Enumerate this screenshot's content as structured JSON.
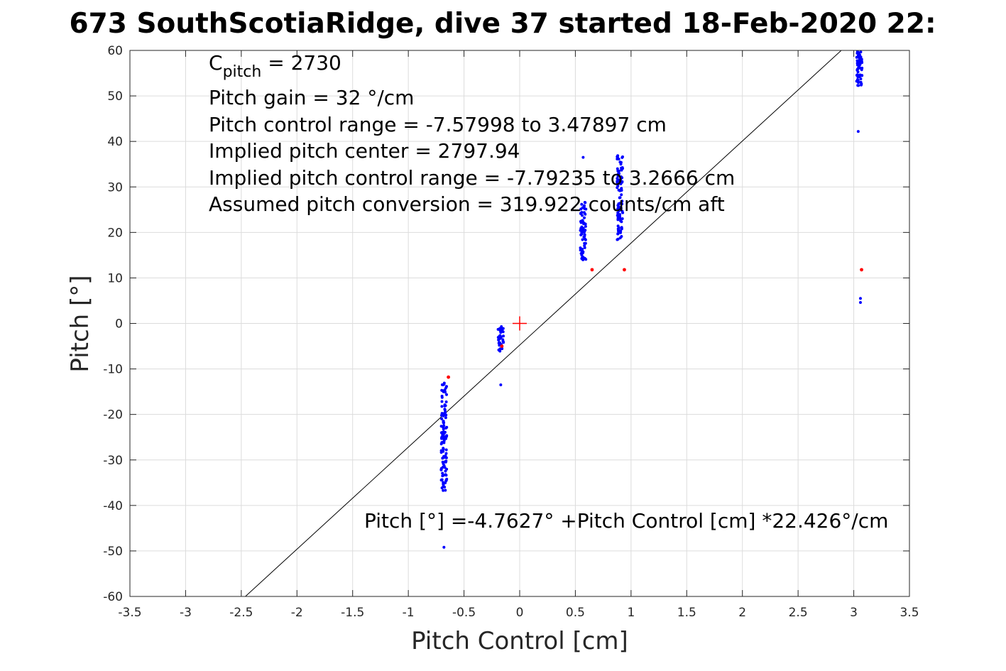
{
  "chart_data": {
    "type": "scatter",
    "title": "673 SouthScotiaRidge, dive 37 started 18-Feb-2020 22:",
    "xlabel": "Pitch Control [cm]",
    "ylabel": "Pitch [°]",
    "xlim": [
      -3.5,
      3.5
    ],
    "ylim": [
      -60,
      60
    ],
    "xticks": [
      -3.5,
      -3,
      -2.5,
      -2,
      -1.5,
      -1,
      -0.5,
      0,
      0.5,
      1,
      1.5,
      2,
      2.5,
      3,
      3.5
    ],
    "xtick_labels": [
      "-3.5",
      "-3",
      "-2.5",
      "-2",
      "-1.5",
      "-1",
      "-0.5",
      "0",
      "0.5",
      "1",
      "1.5",
      "2",
      "2.5",
      "3",
      "3.5"
    ],
    "yticks": [
      -60,
      -50,
      -40,
      -30,
      -20,
      -10,
      0,
      10,
      20,
      30,
      40,
      50,
      60
    ],
    "ytick_labels": [
      "-60",
      "-50",
      "-40",
      "-30",
      "-20",
      "-10",
      "0",
      "10",
      "20",
      "30",
      "40",
      "50",
      "60"
    ],
    "grid": true,
    "colors": {
      "points": "#0000ff",
      "outliers": "#ff0000",
      "fit": "#000000",
      "center": "#ff0000",
      "grid": "#dcdcdc"
    },
    "annotations": {
      "c_pitch_symbol": "C",
      "c_pitch_subscript": "pitch",
      "c_pitch_value": " = 2730",
      "gain": "Pitch gain = 32 °/cm",
      "range": "Pitch control range = -7.57998 to 3.47897 cm",
      "implied_center": "Implied pitch center = 2797.94",
      "implied_range": "Implied pitch control range = -7.79235 to 3.2666 cm",
      "conversion": "Assumed pitch conversion = 319.922 counts/cm aft",
      "fit_equation": "Pitch [°] =-4.7627° +Pitch Control [cm] *22.426°/cm"
    },
    "fit_line": {
      "intercept": -4.7627,
      "slope": 22.426
    },
    "center_marker": {
      "x": 0,
      "y": 0
    },
    "clusters": [
      {
        "x": -0.68,
        "y_min": -37,
        "y_max": -12.5,
        "n": 120
      },
      {
        "x": -0.17,
        "y_min": -6.5,
        "y_max": -0.5,
        "n": 40
      },
      {
        "x": 0.57,
        "y_min": 14,
        "y_max": 27,
        "n": 70
      },
      {
        "x": 0.9,
        "y_min": 18,
        "y_max": 37,
        "n": 90
      },
      {
        "x": 3.05,
        "y_min": 52,
        "y_max": 60,
        "n": 60
      }
    ],
    "extra_points": [
      {
        "x": -0.68,
        "y": -49.2
      },
      {
        "x": -0.17,
        "y": -13.5
      },
      {
        "x": 0.57,
        "y": 36.5
      },
      {
        "x": 3.04,
        "y": 42.2
      },
      {
        "x": 3.06,
        "y": 5.5
      },
      {
        "x": 3.06,
        "y": 4.6
      }
    ],
    "outliers": [
      {
        "x": -0.64,
        "y": -11.8
      },
      {
        "x": -0.16,
        "y": -5.0
      },
      {
        "x": 0.65,
        "y": 11.8
      },
      {
        "x": 0.94,
        "y": 11.8
      },
      {
        "x": 3.07,
        "y": 11.8
      }
    ]
  }
}
